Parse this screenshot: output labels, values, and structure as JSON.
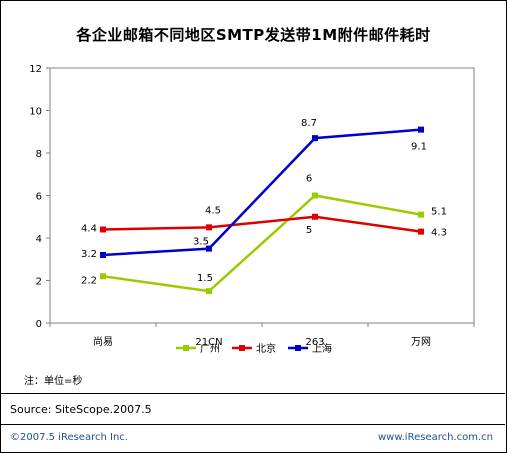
{
  "chart_data": {
    "type": "line",
    "title": "各企业邮箱不同地区SMTP发送带1M附件邮件耗时",
    "categories": [
      "尚易",
      "21CN",
      "263",
      "万网"
    ],
    "ylim": [
      0,
      12
    ],
    "yticks": [
      "0",
      "2",
      "4",
      "6",
      "8",
      "10",
      "12"
    ],
    "grid": false,
    "legend_position": "bottom",
    "series": [
      {
        "name": "广州",
        "color": "#99cc00",
        "values": [
          2.2,
          1.5,
          6,
          5.1
        ],
        "labels": [
          "2.2",
          "1.5",
          "6",
          "5.1"
        ]
      },
      {
        "name": "北京",
        "color": "#dd0000",
        "values": [
          4.4,
          4.5,
          5,
          4.3
        ],
        "labels": [
          "4.4",
          "4.5",
          "5",
          "4.3"
        ]
      },
      {
        "name": "上海",
        "color": "#0000cc",
        "values": [
          3.2,
          3.5,
          8.7,
          9.1
        ],
        "labels": [
          "3.2",
          "3.5",
          "8.7",
          "9.1"
        ]
      }
    ]
  },
  "note": "注：单位=秒",
  "source": "Source:  SiteScope.2007.5",
  "footer": {
    "copyright": "©2007.5 iResearch Inc.",
    "url": "www.iResearch.com.cn"
  }
}
